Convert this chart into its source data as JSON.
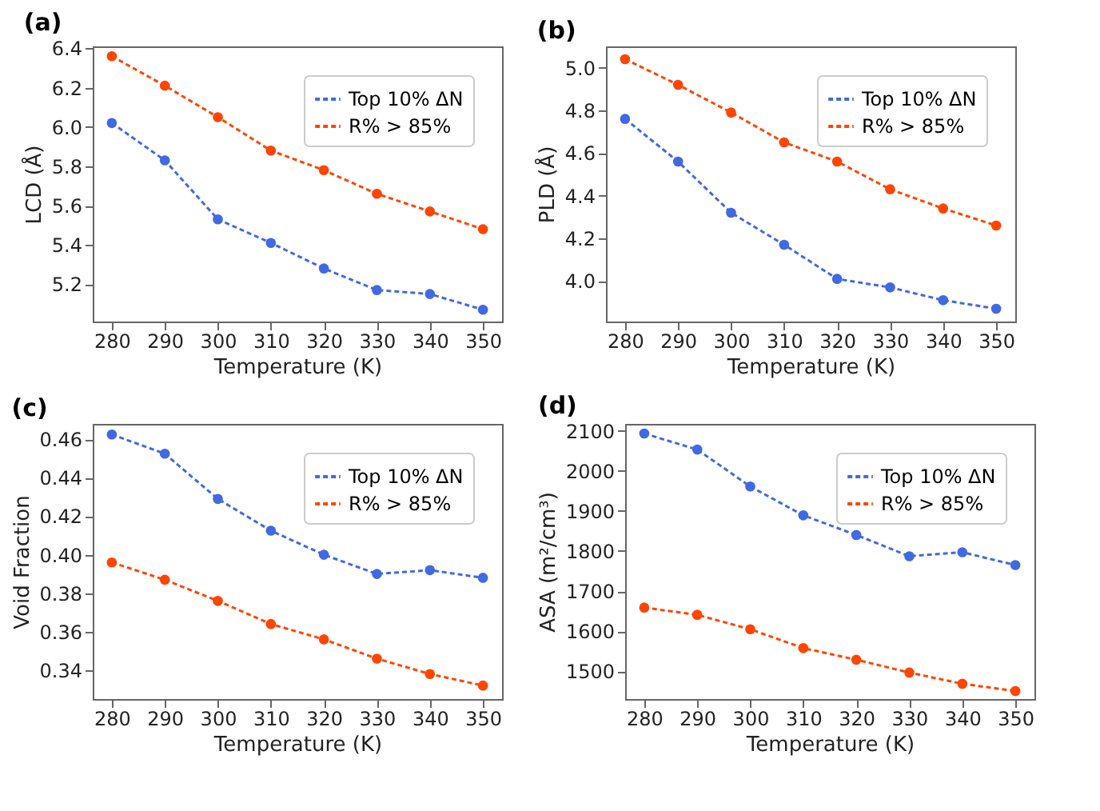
{
  "chart_data": [
    {
      "type": "line",
      "title": "(a)",
      "xlabel": "Temperature (K)",
      "ylabel": "LCD (Å)",
      "x": [
        280,
        290,
        300,
        310,
        320,
        330,
        340,
        350
      ],
      "xlim": [
        276.4,
        353.6
      ],
      "xticks": [
        280,
        290,
        300,
        310,
        320,
        330,
        340,
        350
      ],
      "ylim": [
        5.01,
        6.41
      ],
      "yticks": [
        5.2,
        5.4,
        5.6,
        5.8,
        {
          "value": 6,
          "label": "6.0"
        },
        6.2,
        6.4
      ],
      "grid": false,
      "legend": "top right",
      "marker": "circle",
      "line_style": "dashed",
      "series": [
        {
          "name": "Top 10% ΔN",
          "color": "#4169e1",
          "values": [
            6.02,
            5.83,
            5.53,
            5.41,
            5.28,
            5.17,
            5.15,
            5.07
          ]
        },
        {
          "name": "R% > 85%",
          "color": "#ff4500",
          "values": [
            6.36,
            6.21,
            6.05,
            5.88,
            5.78,
            5.66,
            5.57,
            5.48
          ]
        }
      ]
    },
    {
      "type": "line",
      "title": "(b)",
      "xlabel": "Temperature (K)",
      "ylabel": "PLD (Å)",
      "x": [
        280,
        290,
        300,
        310,
        320,
        330,
        340,
        350
      ],
      "xlim": [
        276.4,
        353.6
      ],
      "xticks": [
        280,
        290,
        300,
        310,
        320,
        330,
        340,
        350
      ],
      "ylim": [
        3.81,
        5.1
      ],
      "yticks": [
        {
          "value": 4,
          "label": "4.0"
        },
        4.2,
        4.4,
        4.6,
        4.8,
        {
          "value": 5,
          "label": "5.0"
        }
      ],
      "grid": false,
      "legend": "top right",
      "marker": "circle",
      "line_style": "dashed",
      "series": [
        {
          "name": "Top 10% ΔN",
          "color": "#4169e1",
          "values": [
            4.76,
            4.56,
            4.32,
            4.17,
            4.01,
            3.97,
            3.91,
            3.87
          ]
        },
        {
          "name": "R% > 85%",
          "color": "#ff4500",
          "values": [
            5.04,
            4.92,
            4.79,
            4.65,
            4.56,
            4.43,
            4.34,
            4.26
          ]
        }
      ]
    },
    {
      "type": "line",
      "title": "(c)",
      "xlabel": "Temperature (K)",
      "ylabel": "Void Fraction",
      "x": [
        280,
        290,
        300,
        310,
        320,
        330,
        340,
        350
      ],
      "xlim": [
        276.4,
        353.6
      ],
      "xticks": [
        280,
        290,
        300,
        310,
        320,
        330,
        340,
        350
      ],
      "ylim": [
        0.325,
        0.468
      ],
      "yticks": [
        0.34,
        0.36,
        0.38,
        {
          "value": 0.4,
          "label": "0.40"
        },
        0.42,
        0.44,
        0.46
      ],
      "grid": false,
      "legend": "top right",
      "marker": "circle",
      "line_style": "dashed",
      "series": [
        {
          "name": "Top 10% ΔN",
          "color": "#4169e1",
          "values": [
            0.4625,
            0.4525,
            0.429,
            0.4125,
            0.4,
            0.39,
            0.392,
            0.388
          ]
        },
        {
          "name": "R% > 85%",
          "color": "#ff4500",
          "values": [
            0.396,
            0.387,
            0.376,
            0.364,
            0.356,
            0.346,
            0.338,
            0.332
          ]
        }
      ]
    },
    {
      "type": "line",
      "title": "(d)",
      "xlabel": "Temperature (K)",
      "ylabel": "ASA (m²/cm³)",
      "x": [
        280,
        290,
        300,
        310,
        320,
        330,
        340,
        350
      ],
      "xlim": [
        276.4,
        353.6
      ],
      "xticks": [
        280,
        290,
        300,
        310,
        320,
        330,
        340,
        350
      ],
      "ylim": [
        1431,
        2117
      ],
      "yticks": [
        1500,
        1600,
        1700,
        1800,
        1900,
        2000,
        2100
      ],
      "grid": false,
      "legend": "top right",
      "marker": "circle",
      "line_style": "dashed",
      "series": [
        {
          "name": "Top 10% ΔN",
          "color": "#4169e1",
          "values": [
            2093,
            2053,
            1961,
            1889,
            1840,
            1787,
            1797,
            1765
          ]
        },
        {
          "name": "R% > 85%",
          "color": "#ff4500",
          "values": [
            1659,
            1641,
            1605,
            1558,
            1529,
            1497,
            1469,
            1451
          ]
        }
      ]
    }
  ]
}
